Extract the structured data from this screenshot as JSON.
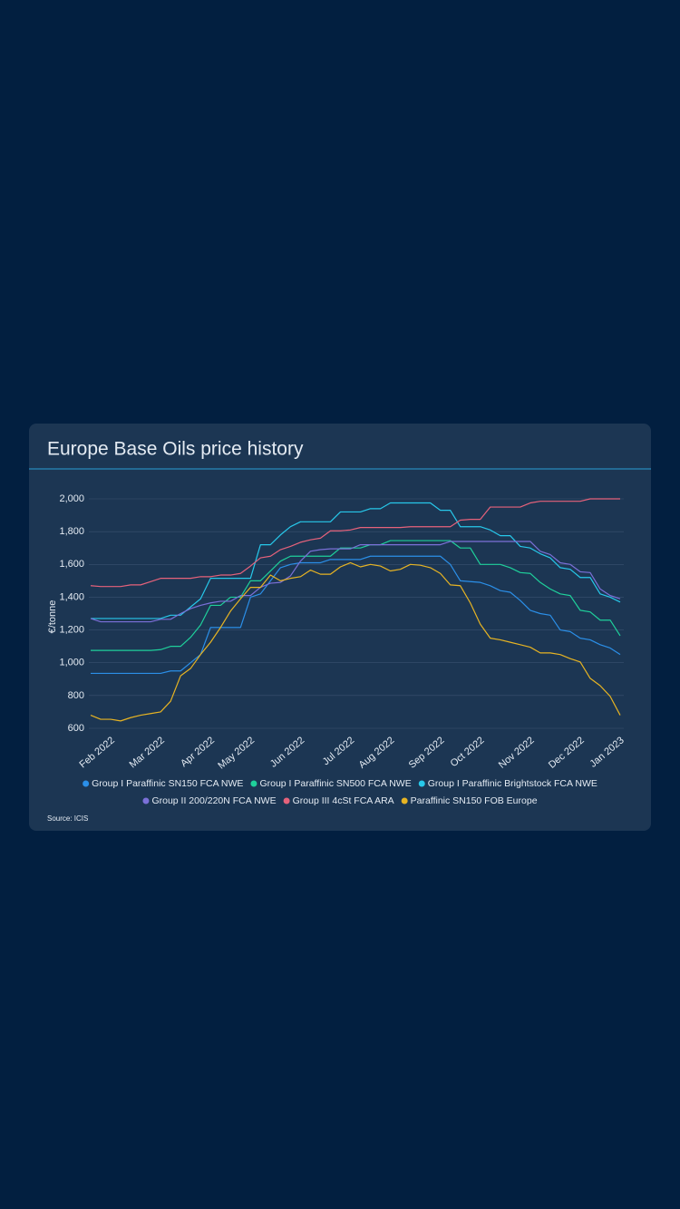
{
  "chart_data": {
    "type": "line",
    "title": "Europe Base Oils price history",
    "y_label": "€/tonne",
    "source": "Source: ICIS",
    "categories": [
      null,
      null,
      "Feb 2022",
      null,
      null,
      null,
      null,
      "Mar 2022",
      null,
      null,
      null,
      null,
      "Apr 2022",
      null,
      null,
      null,
      "May 2022",
      null,
      null,
      null,
      null,
      "Jun 2022",
      null,
      null,
      null,
      null,
      "Jul 2022",
      null,
      null,
      null,
      "Aug 2022",
      null,
      null,
      null,
      null,
      "Sep 2022",
      null,
      null,
      null,
      "Oct 2022",
      null,
      null,
      null,
      null,
      "Nov 2022",
      null,
      null,
      null,
      null,
      "Dec 2022",
      null,
      null,
      null,
      "Jan 2023"
    ],
    "ylim": [
      600,
      2000
    ],
    "yticks": [
      {
        "value": 600,
        "label": "600"
      },
      {
        "value": 800,
        "label": "800"
      },
      {
        "value": 1000,
        "label": "1,000"
      },
      {
        "value": 1200,
        "label": "1,200"
      },
      {
        "value": 1400,
        "label": "1,400"
      },
      {
        "value": 1600,
        "label": "1,600"
      },
      {
        "value": 1800,
        "label": "1,800"
      },
      {
        "value": 2000,
        "label": "2,000"
      }
    ],
    "grid": true,
    "legend": "bottom",
    "series": [
      {
        "name": "Group I Paraffinic SN150 FCA NWE",
        "color": "#2b8fe8",
        "values": [
          935,
          935,
          935,
          935,
          935,
          935,
          935,
          935,
          950,
          950,
          1000,
          1050,
          1215,
          1215,
          1215,
          1215,
          1400,
          1420,
          1500,
          1580,
          1600,
          1610,
          1610,
          1610,
          1630,
          1630,
          1630,
          1630,
          1650,
          1650,
          1650,
          1650,
          1650,
          1650,
          1650,
          1650,
          1600,
          1500,
          1495,
          1490,
          1470,
          1440,
          1430,
          1380,
          1320,
          1300,
          1290,
          1200,
          1190,
          1150,
          1140,
          1110,
          1090,
          1050
        ]
      },
      {
        "name": "Group I Paraffinic SN500 FCA NWE",
        "color": "#1fd09b",
        "values": [
          1075,
          1075,
          1075,
          1075,
          1075,
          1075,
          1075,
          1080,
          1100,
          1100,
          1155,
          1230,
          1350,
          1350,
          1400,
          1400,
          1500,
          1500,
          1560,
          1620,
          1650,
          1650,
          1650,
          1650,
          1650,
          1700,
          1700,
          1700,
          1720,
          1720,
          1745,
          1745,
          1745,
          1745,
          1745,
          1745,
          1745,
          1700,
          1700,
          1600,
          1600,
          1600,
          1580,
          1550,
          1545,
          1490,
          1450,
          1420,
          1410,
          1320,
          1310,
          1260,
          1260,
          1165
        ]
      },
      {
        "name": "Group I Paraffinic Brightstock FCA NWE",
        "color": "#27c8ea",
        "values": [
          1270,
          1270,
          1270,
          1270,
          1270,
          1270,
          1270,
          1270,
          1290,
          1290,
          1340,
          1390,
          1515,
          1515,
          1515,
          1515,
          1515,
          1720,
          1720,
          1780,
          1830,
          1860,
          1860,
          1860,
          1860,
          1920,
          1920,
          1920,
          1940,
          1940,
          1975,
          1975,
          1975,
          1975,
          1975,
          1930,
          1930,
          1830,
          1830,
          1830,
          1810,
          1775,
          1775,
          1710,
          1700,
          1665,
          1640,
          1580,
          1570,
          1520,
          1520,
          1420,
          1400,
          1370
        ]
      },
      {
        "name": "Group II 200/220N FCA NWE",
        "color": "#7b70d8",
        "values": [
          1270,
          1250,
          1250,
          1250,
          1250,
          1250,
          1250,
          1265,
          1265,
          1300,
          1330,
          1350,
          1365,
          1375,
          1375,
          1410,
          1410,
          1460,
          1485,
          1490,
          1530,
          1620,
          1680,
          1690,
          1695,
          1695,
          1695,
          1720,
          1720,
          1720,
          1720,
          1720,
          1720,
          1720,
          1720,
          1720,
          1740,
          1740,
          1740,
          1740,
          1740,
          1740,
          1740,
          1740,
          1740,
          1680,
          1660,
          1610,
          1600,
          1555,
          1550,
          1450,
          1410,
          1390
        ]
      },
      {
        "name": "Group III 4cSt FCA ARA",
        "color": "#e6627b",
        "values": [
          1470,
          1465,
          1465,
          1465,
          1475,
          1475,
          1495,
          1515,
          1515,
          1515,
          1515,
          1525,
          1525,
          1535,
          1535,
          1545,
          1590,
          1640,
          1650,
          1690,
          1710,
          1735,
          1750,
          1760,
          1805,
          1805,
          1810,
          1825,
          1825,
          1825,
          1825,
          1825,
          1830,
          1830,
          1830,
          1830,
          1830,
          1870,
          1875,
          1875,
          1950,
          1950,
          1950,
          1950,
          1975,
          1985,
          1985,
          1985,
          1985,
          1985,
          2000,
          2000,
          2000,
          2000
        ]
      },
      {
        "name": "Paraffinic SN150 FOB Europe",
        "color": "#e7b423",
        "values": [
          680,
          655,
          655,
          645,
          665,
          680,
          690,
          700,
          765,
          920,
          965,
          1050,
          1125,
          1215,
          1315,
          1390,
          1460,
          1460,
          1535,
          1500,
          1515,
          1525,
          1565,
          1540,
          1540,
          1585,
          1610,
          1585,
          1600,
          1590,
          1560,
          1570,
          1600,
          1595,
          1580,
          1545,
          1475,
          1470,
          1365,
          1235,
          1150,
          1140,
          1125,
          1110,
          1095,
          1060,
          1060,
          1050,
          1025,
          1005,
          905,
          860,
          795,
          680
        ]
      }
    ]
  }
}
